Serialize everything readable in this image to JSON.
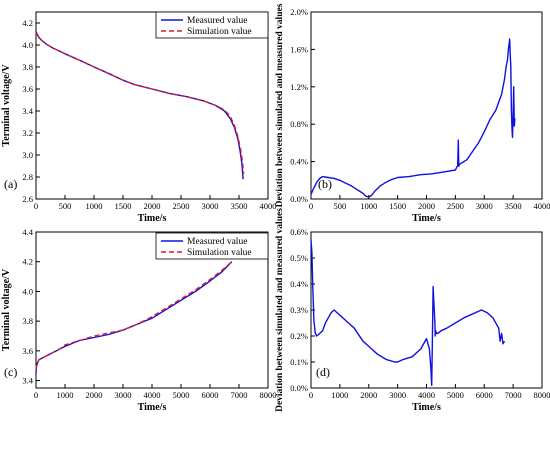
{
  "chart_data": [
    {
      "type": "line",
      "panel_label": "(a)",
      "xlabel": "Time/s",
      "ylabel": "Terminal voltage/V",
      "xlim": [
        0,
        4000
      ],
      "ylim": [
        2.6,
        4.3
      ],
      "xticks": [
        0,
        500,
        1000,
        1500,
        2000,
        2500,
        3000,
        3500,
        4000
      ],
      "yticks": [
        2.6,
        2.8,
        3.0,
        3.2,
        3.4,
        3.6,
        3.8,
        4.0,
        4.2
      ],
      "ytick_decimals": 1,
      "legend": {
        "position": "top-right"
      },
      "series": [
        {
          "name": "Measured value",
          "color": "#1010e0",
          "style": "solid",
          "x": [
            0,
            50,
            100,
            200,
            300,
            500,
            800,
            1000,
            1300,
            1500,
            1700,
            2000,
            2300,
            2600,
            2900,
            3100,
            3250,
            3350,
            3420,
            3480,
            3520,
            3550,
            3570
          ],
          "y": [
            4.12,
            4.07,
            4.04,
            4.0,
            3.97,
            3.92,
            3.85,
            3.8,
            3.73,
            3.68,
            3.64,
            3.6,
            3.56,
            3.53,
            3.49,
            3.45,
            3.4,
            3.33,
            3.25,
            3.15,
            3.03,
            2.92,
            2.78
          ]
        },
        {
          "name": "Simulation value",
          "color": "#e02020",
          "style": "dashed",
          "x": [
            0,
            50,
            100,
            200,
            300,
            500,
            800,
            1000,
            1300,
            1500,
            1700,
            2000,
            2300,
            2600,
            2900,
            3100,
            3250,
            3350,
            3420,
            3480,
            3530,
            3560,
            3580
          ],
          "y": [
            4.11,
            4.07,
            4.04,
            4.0,
            3.97,
            3.92,
            3.85,
            3.8,
            3.73,
            3.68,
            3.64,
            3.6,
            3.56,
            3.53,
            3.49,
            3.45,
            3.41,
            3.35,
            3.27,
            3.17,
            3.05,
            2.94,
            2.83
          ]
        }
      ]
    },
    {
      "type": "line",
      "panel_label": "(b)",
      "xlabel": "Time/s",
      "ylabel": "Deviation between simulated and measured values",
      "xlim": [
        0,
        4000
      ],
      "ylim": [
        0,
        0.02
      ],
      "xticks": [
        0,
        500,
        1000,
        1500,
        2000,
        2500,
        3000,
        3500,
        4000
      ],
      "yticks": [
        0,
        0.004,
        0.008,
        0.012,
        0.016,
        0.02
      ],
      "ytick_format": "percent",
      "ytick_decimals": 1,
      "series": [
        {
          "name": "",
          "color": "#1010e0",
          "style": "solid",
          "x": [
            0,
            50,
            100,
            150,
            200,
            300,
            400,
            500,
            600,
            700,
            800,
            900,
            950,
            1000,
            1050,
            1100,
            1200,
            1300,
            1400,
            1500,
            1700,
            1900,
            2100,
            2300,
            2500,
            2540,
            2550,
            2560,
            2570,
            2700,
            2900,
            3000,
            3100,
            3200,
            3300,
            3350,
            3380,
            3400,
            3420,
            3440,
            3450,
            3460,
            3470,
            3480,
            3490,
            3500,
            3510,
            3520,
            3530
          ],
          "y": [
            0.0005,
            0.0012,
            0.0018,
            0.0022,
            0.0024,
            0.0023,
            0.0022,
            0.002,
            0.0017,
            0.0014,
            0.001,
            0.0006,
            0.0003,
            0.0002,
            0.0004,
            0.0008,
            0.0014,
            0.0018,
            0.0021,
            0.0023,
            0.0024,
            0.0026,
            0.0027,
            0.0029,
            0.0031,
            0.0036,
            0.0063,
            0.0035,
            0.0037,
            0.0042,
            0.006,
            0.0072,
            0.0085,
            0.0095,
            0.0112,
            0.0128,
            0.0142,
            0.0148,
            0.0161,
            0.0171,
            0.0155,
            0.0142,
            0.0095,
            0.0075,
            0.0066,
            0.0088,
            0.012,
            0.0078,
            0.0086
          ]
        }
      ]
    },
    {
      "type": "line",
      "panel_label": "(c)",
      "xlabel": "Time/s",
      "ylabel": "Terminal voltage/V",
      "xlim": [
        0,
        8000
      ],
      "ylim": [
        3.35,
        4.4
      ],
      "xticks": [
        0,
        1000,
        2000,
        3000,
        4000,
        5000,
        6000,
        7000,
        8000
      ],
      "yticks": [
        3.4,
        3.6,
        3.8,
        4.0,
        4.2,
        4.4
      ],
      "ytick_decimals": 1,
      "legend": {
        "position": "top-right"
      },
      "series": [
        {
          "name": "Measured value",
          "color": "#1010e0",
          "style": "solid",
          "x": [
            0,
            20,
            50,
            100,
            200,
            300,
            500,
            800,
            1000,
            1500,
            2000,
            2500,
            3000,
            3500,
            4000,
            4500,
            5000,
            5500,
            6000,
            6400,
            6750
          ],
          "y": [
            3.45,
            3.5,
            3.52,
            3.54,
            3.55,
            3.56,
            3.58,
            3.61,
            3.63,
            3.67,
            3.69,
            3.71,
            3.74,
            3.78,
            3.82,
            3.88,
            3.94,
            4.0,
            4.07,
            4.13,
            4.2
          ]
        },
        {
          "name": "Simulation value",
          "color": "#e02020",
          "style": "dashed",
          "x": [
            0,
            20,
            50,
            100,
            200,
            300,
            500,
            800,
            1000,
            1500,
            2000,
            2500,
            3000,
            3500,
            4000,
            4500,
            5000,
            5500,
            6000,
            6400,
            6750
          ],
          "y": [
            3.47,
            3.51,
            3.52,
            3.54,
            3.55,
            3.56,
            3.58,
            3.61,
            3.64,
            3.67,
            3.7,
            3.72,
            3.74,
            3.78,
            3.83,
            3.89,
            3.95,
            4.01,
            4.08,
            4.14,
            4.2
          ]
        }
      ]
    },
    {
      "type": "line",
      "panel_label": "(d)",
      "xlabel": "Time/s",
      "ylabel": "Deviation between simulated and measured values",
      "xlim": [
        0,
        8000
      ],
      "ylim": [
        0,
        0.006
      ],
      "xticks": [
        0,
        1000,
        2000,
        3000,
        4000,
        5000,
        6000,
        7000,
        8000
      ],
      "yticks": [
        0,
        0.001,
        0.002,
        0.003,
        0.004,
        0.005,
        0.006
      ],
      "ytick_format": "percent",
      "ytick_decimals": 1,
      "series": [
        {
          "name": "",
          "color": "#1010e0",
          "style": "solid",
          "x": [
            0,
            30,
            60,
            100,
            150,
            200,
            300,
            400,
            500,
            600,
            700,
            800,
            900,
            1000,
            1200,
            1500,
            1800,
            2000,
            2300,
            2600,
            2900,
            3000,
            3200,
            3500,
            3800,
            4000,
            4100,
            4150,
            4180,
            4200,
            4230,
            4260,
            4290,
            4300,
            4320,
            4350,
            4400,
            4500,
            4700,
            5000,
            5300,
            5500,
            5700,
            5900,
            6100,
            6300,
            6500,
            6550,
            6600,
            6650,
            6700
          ],
          "y": [
            0.0057,
            0.0052,
            0.004,
            0.0026,
            0.0021,
            0.002,
            0.0021,
            0.0022,
            0.0025,
            0.0027,
            0.0029,
            0.003,
            0.0029,
            0.0028,
            0.0026,
            0.0023,
            0.0018,
            0.0016,
            0.0013,
            0.0011,
            0.001,
            0.001,
            0.0011,
            0.0012,
            0.0015,
            0.0019,
            0.0015,
            0.0008,
            0.0001,
            0.0016,
            0.0039,
            0.0032,
            0.0025,
            0.002,
            0.0022,
            0.0021,
            0.0021,
            0.0022,
            0.0023,
            0.0025,
            0.0027,
            0.0028,
            0.0029,
            0.003,
            0.0029,
            0.0027,
            0.0023,
            0.0018,
            0.0021,
            0.0017,
            0.0018
          ]
        }
      ]
    }
  ]
}
